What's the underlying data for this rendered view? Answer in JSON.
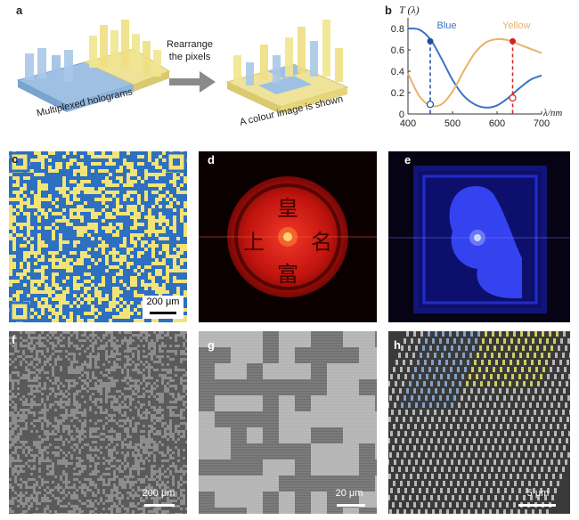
{
  "panel_a": {
    "label": "a",
    "arrow_text_line1": "Rearrange",
    "arrow_text_line2": "the pixels",
    "caption_left": "Multiplexed holograms",
    "caption_right": "A colour image is shown"
  },
  "panel_b": {
    "label": "b",
    "y_label": "T (λ)",
    "x_label": "λ/nm",
    "blue_label": "Blue",
    "yellow_label": "Yellow",
    "blue_color": "#3b73c6",
    "yellow_color": "#e9b268",
    "marker_blue_color": "#1d4fa6",
    "marker_red_color": "#d82020"
  },
  "chart_data": {
    "type": "line",
    "title": "",
    "xlabel": "λ/nm",
    "ylabel": "T (λ)",
    "xlim": [
      400,
      700
    ],
    "ylim": [
      0,
      0.9
    ],
    "x_ticks": [
      "400",
      "500",
      "600",
      "700"
    ],
    "y_ticks": [
      "0",
      "0.2",
      "0.4",
      "0.6",
      "0.8"
    ],
    "x": [
      400,
      425,
      450,
      475,
      500,
      525,
      550,
      575,
      600,
      625,
      650,
      675,
      700
    ],
    "series": [
      {
        "name": "Blue",
        "values": [
          0.8,
          0.79,
          0.7,
          0.52,
          0.32,
          0.17,
          0.09,
          0.06,
          0.08,
          0.15,
          0.24,
          0.32,
          0.36
        ]
      },
      {
        "name": "Yellow",
        "values": [
          0.38,
          0.17,
          0.08,
          0.09,
          0.21,
          0.4,
          0.57,
          0.67,
          0.7,
          0.69,
          0.65,
          0.61,
          0.57
        ]
      }
    ],
    "markers": [
      {
        "x": 450,
        "filled_y": 0.68,
        "open_y": 0.09,
        "color": "blue"
      },
      {
        "x": 635,
        "filled_y": 0.68,
        "open_y": 0.15,
        "color": "red"
      }
    ],
    "grid": false
  },
  "panel_c": {
    "label": "c",
    "scale": "200 μm"
  },
  "panel_d": {
    "label": "d",
    "chars": [
      "皇",
      "名",
      "富",
      "上"
    ]
  },
  "panel_e": {
    "label": "e"
  },
  "panel_f": {
    "label": "f",
    "scale": "200 μm"
  },
  "panel_g": {
    "label": "g",
    "scale": "20 μm"
  },
  "panel_h": {
    "label": "h",
    "scale": "5 μm"
  }
}
